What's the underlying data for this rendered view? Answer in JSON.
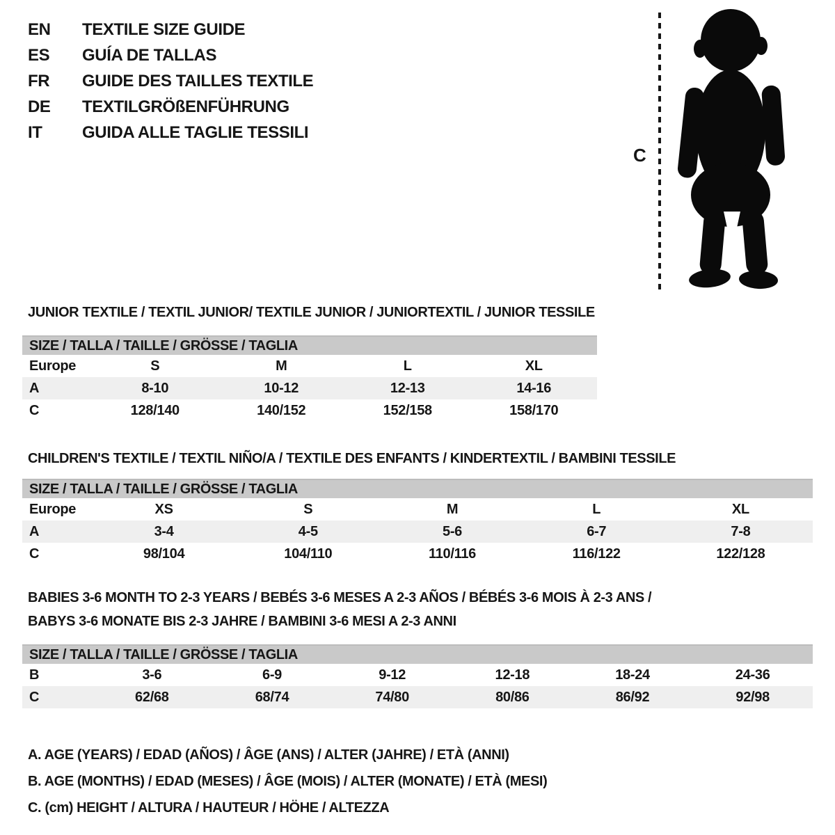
{
  "languages": [
    {
      "code": "EN",
      "label": "TEXTILE SIZE GUIDE"
    },
    {
      "code": "ES",
      "label": "GUÍA DE TALLAS"
    },
    {
      "code": "FR",
      "label": "GUIDE DES TAILLES TEXTILE"
    },
    {
      "code": "DE",
      "label": "TEXTILGRÖßENFÜHRUNG"
    },
    {
      "code": "IT",
      "label": "GUIDA ALLE TAGLIE TESSILI"
    }
  ],
  "figure": {
    "measure_label": "C",
    "icon": "toddler-silhouette"
  },
  "sections": [
    {
      "title_lines": [
        "JUNIOR TEXTILE / TEXTIL JUNIOR/ TEXTILE JUNIOR / JUNIORTEXTIL / JUNIOR TESSILE"
      ],
      "table": {
        "size_header": "SIZE / TALLA / TAILLE / GRÖSSE / TAGLIA",
        "rows": [
          {
            "label": "Europe",
            "values": [
              "S",
              "M",
              "L",
              "XL"
            ]
          },
          {
            "label": "A",
            "values": [
              "8-10",
              "10-12",
              "12-13",
              "14-16"
            ]
          },
          {
            "label": "C",
            "values": [
              "128/140",
              "140/152",
              "152/158",
              "158/170"
            ]
          }
        ]
      }
    },
    {
      "title_lines": [
        "CHILDREN'S TEXTILE / TEXTIL NIÑO/A / TEXTILE DES ENFANTS / KINDERTEXTIL / BAMBINI TESSILE"
      ],
      "table": {
        "size_header": "SIZE / TALLA / TAILLE / GRÖSSE / TAGLIA",
        "rows": [
          {
            "label": "Europe",
            "values": [
              "XS",
              "S",
              "M",
              "L",
              "XL"
            ]
          },
          {
            "label": "A",
            "values": [
              "3-4",
              "4-5",
              "5-6",
              "6-7",
              "7-8"
            ]
          },
          {
            "label": "C",
            "values": [
              "98/104",
              "104/110",
              "110/116",
              "116/122",
              "122/128"
            ]
          }
        ]
      }
    },
    {
      "title_lines": [
        "BABIES 3-6 MONTH TO 2-3 YEARS / BEBÉS 3-6 MESES A 2-3 AÑOS / BÉBÉS 3-6 MOIS À 2-3 ANS /",
        "BABYS 3-6 MONATE BIS 2-3 JAHRE / BAMBINI 3-6 MESI A 2-3 ANNI"
      ],
      "table": {
        "size_header": "SIZE / TALLA / TAILLE / GRÖSSE / TAGLIA",
        "rows": [
          {
            "label": "B",
            "values": [
              "3-6",
              "6-9",
              "9-12",
              "12-18",
              "18-24",
              "24-36"
            ]
          },
          {
            "label": "C",
            "values": [
              "62/68",
              "68/74",
              "74/80",
              "80/86",
              "86/92",
              "92/98"
            ]
          }
        ]
      }
    }
  ],
  "legend": [
    "A. AGE (YEARS) / EDAD (AÑOS) / ÂGE (ANS) / ALTER (JAHRE) / ETÀ (ANNI)",
    "B. AGE (MONTHS) / EDAD (MESES) / ÂGE (MOIS) / ALTER (MONATE) / ETÀ (MESI)",
    "C. (cm) HEIGHT / ALTURA / HAUTEUR / HÖHE / ALTEZZA"
  ],
  "colors": {
    "header_bar": "#c9c9c9",
    "row_band": "#efefef",
    "text": "#161616",
    "silhouette": "#0a0a0a"
  }
}
